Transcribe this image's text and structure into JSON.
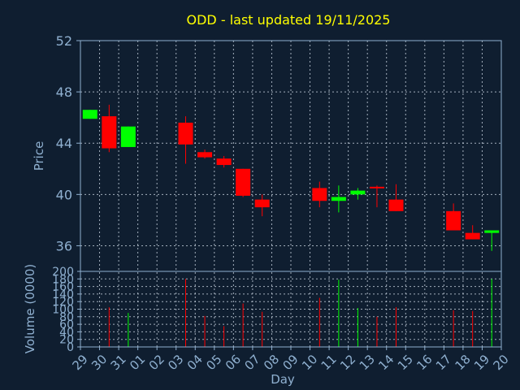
{
  "colors": {
    "background": "#0f1e30",
    "axes": "#8fb0d0",
    "grid": "#c8d4e0",
    "title": "#ffff00",
    "up": "#00ff00",
    "down": "#ff0000"
  },
  "chart_data": {
    "type": "candlestick",
    "title": "ODD - last updated 19/11/2025",
    "price": {
      "ylabel": "Price",
      "ylim": [
        34,
        52
      ],
      "yticks": [
        36,
        40,
        44,
        48,
        52
      ],
      "grid": true
    },
    "volume": {
      "ylabel": "Volume (0000)",
      "ylim": [
        0,
        200
      ],
      "yticks": [
        0,
        20,
        40,
        60,
        80,
        100,
        120,
        140,
        160,
        180,
        200
      ],
      "grid": true
    },
    "xlabel": "Day",
    "xticks": [
      "29",
      "30",
      "31",
      "01",
      "02",
      "03",
      "04",
      "05",
      "06",
      "07",
      "08",
      "09",
      "10",
      "11",
      "12",
      "13",
      "14",
      "15",
      "16",
      "17",
      "18",
      "19",
      "20"
    ],
    "candles": [
      {
        "day": "29",
        "open": 45.9,
        "high": 46.6,
        "low": 45.9,
        "close": 46.6,
        "volume": 0
      },
      {
        "day": "30",
        "open": 46.1,
        "high": 47.0,
        "low": 43.3,
        "close": 43.6,
        "volume": 105
      },
      {
        "day": "31",
        "open": 43.7,
        "high": 45.3,
        "low": 43.7,
        "close": 45.3,
        "volume": 90
      },
      {
        "day": "03",
        "open": 45.6,
        "high": 46.1,
        "low": 42.4,
        "close": 43.9,
        "volume": 180
      },
      {
        "day": "04",
        "open": 43.3,
        "high": 43.5,
        "low": 42.8,
        "close": 42.9,
        "volume": 82
      },
      {
        "day": "05",
        "open": 42.8,
        "high": 43.0,
        "low": 42.1,
        "close": 42.3,
        "volume": 55
      },
      {
        "day": "06",
        "open": 42.0,
        "high": 42.0,
        "low": 39.8,
        "close": 39.9,
        "volume": 115
      },
      {
        "day": "07",
        "open": 39.6,
        "high": 40.0,
        "low": 38.3,
        "close": 39.0,
        "volume": 93
      },
      {
        "day": "10",
        "open": 40.5,
        "high": 41.0,
        "low": 39.0,
        "close": 39.5,
        "volume": 130
      },
      {
        "day": "11",
        "open": 39.5,
        "high": 40.7,
        "low": 38.6,
        "close": 39.8,
        "volume": 178
      },
      {
        "day": "12",
        "open": 40.0,
        "high": 40.5,
        "low": 39.6,
        "close": 40.3,
        "volume": 103
      },
      {
        "day": "13",
        "open": 40.6,
        "high": 40.7,
        "low": 39.0,
        "close": 40.5,
        "volume": 80
      },
      {
        "day": "14",
        "open": 39.6,
        "high": 40.8,
        "low": 38.7,
        "close": 38.7,
        "volume": 105
      },
      {
        "day": "17",
        "open": 38.7,
        "high": 39.3,
        "low": 37.2,
        "close": 37.2,
        "volume": 97
      },
      {
        "day": "18",
        "open": 37.0,
        "high": 37.6,
        "low": 36.5,
        "close": 36.5,
        "volume": 95
      },
      {
        "day": "19",
        "open": 37.0,
        "high": 37.2,
        "low": 35.6,
        "close": 37.2,
        "volume": 180
      }
    ]
  }
}
